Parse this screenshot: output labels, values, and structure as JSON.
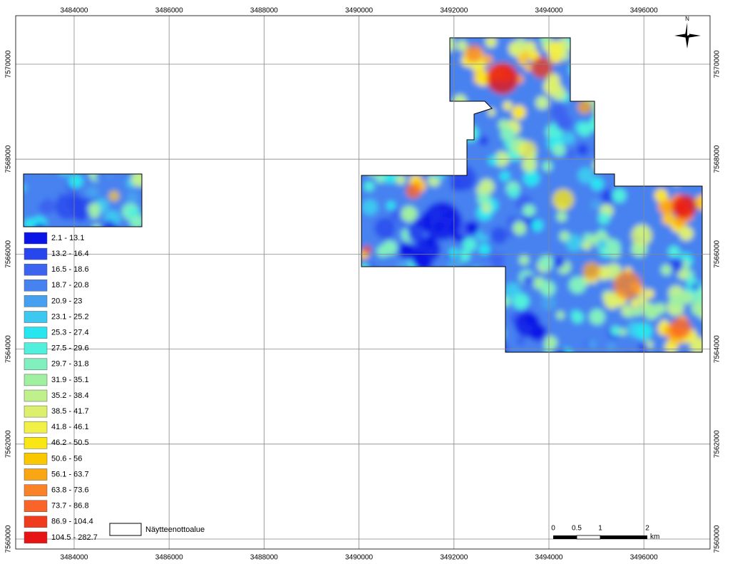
{
  "map": {
    "x_ticks": [
      3484000,
      3486000,
      3488000,
      3490000,
      3492000,
      3494000,
      3496000
    ],
    "y_ticks": [
      7570000,
      7568000,
      7566000,
      7564000,
      7562000,
      7560000
    ],
    "north": "N",
    "legend": {
      "items": [
        {
          "label": "2.1 - 13.1",
          "color": "#0a14e6"
        },
        {
          "label": "13.2 - 16.4",
          "color": "#2846ee"
        },
        {
          "label": "16.5 - 18.6",
          "color": "#3c64f0"
        },
        {
          "label": "18.7 - 20.8",
          "color": "#4682f0"
        },
        {
          "label": "20.9 - 23",
          "color": "#46a0f0"
        },
        {
          "label": "23.1 - 25.2",
          "color": "#3cc8f0"
        },
        {
          "label": "25.3 - 27.4",
          "color": "#28e6f0"
        },
        {
          "label": "27.5 - 29.6",
          "color": "#50f0dc"
        },
        {
          "label": "29.7 - 31.8",
          "color": "#82f0be"
        },
        {
          "label": "31.9 - 35.1",
          "color": "#a0f0a0"
        },
        {
          "label": "35.2 - 38.4",
          "color": "#c0f08c"
        },
        {
          "label": "38.5 - 41.7",
          "color": "#dcf06e"
        },
        {
          "label": "41.8 - 46.1",
          "color": "#f0f046"
        },
        {
          "label": "46.2 - 50.5",
          "color": "#fae614"
        },
        {
          "label": "50.6 - 56",
          "color": "#fac800"
        },
        {
          "label": "56.1 - 63.7",
          "color": "#faa514"
        },
        {
          "label": "63.8 - 73.6",
          "color": "#fa8228"
        },
        {
          "label": "73.7 - 86.8",
          "color": "#fa6428"
        },
        {
          "label": "86.9 - 104.4",
          "color": "#f03c1e"
        },
        {
          "label": "104.5 - 282.7",
          "color": "#e61414"
        }
      ],
      "area_label": "Näytteenottoalue"
    },
    "scale_bar": {
      "labels": [
        "0",
        "0.5",
        "1",
        "2"
      ],
      "unit": "km"
    }
  }
}
